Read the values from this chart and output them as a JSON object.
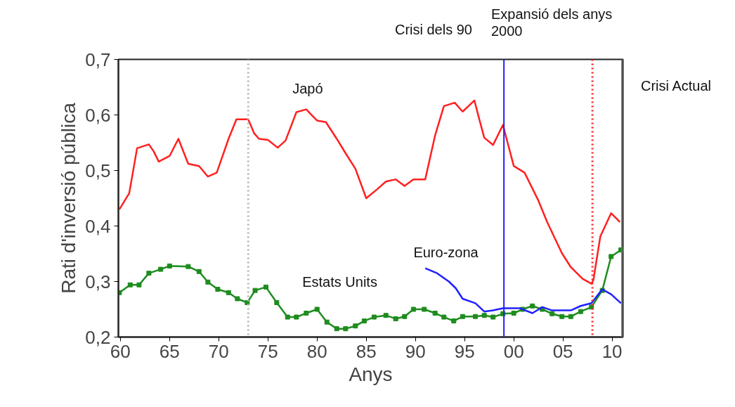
{
  "chart_data": {
    "type": "line",
    "xlabel": "Anys",
    "ylabel": "Rati d'inversió pública",
    "xlim": [
      1959.8,
      2011.1
    ],
    "ylim": [
      0.2,
      0.7
    ],
    "xticks": [
      {
        "value": 1960,
        "label": "60"
      },
      {
        "value": 1965,
        "label": "65"
      },
      {
        "value": 1970,
        "label": "70"
      },
      {
        "value": 1975,
        "label": "75"
      },
      {
        "value": 1980,
        "label": "80"
      },
      {
        "value": 1985,
        "label": "85"
      },
      {
        "value": 1990,
        "label": "90"
      },
      {
        "value": 1995,
        "label": "95"
      },
      {
        "value": 2000,
        "label": "00"
      },
      {
        "value": 2005,
        "label": "05"
      },
      {
        "value": 2010,
        "label": "10"
      }
    ],
    "yticks": [
      {
        "value": 0.2,
        "label": "0,2"
      },
      {
        "value": 0.3,
        "label": "0,3"
      },
      {
        "value": 0.4,
        "label": "0,4"
      },
      {
        "value": 0.5,
        "label": "0,5"
      },
      {
        "value": 0.6,
        "label": "0,6"
      },
      {
        "value": 0.7,
        "label": "0,7"
      }
    ],
    "grid": false,
    "legend": false,
    "line_style": "solid",
    "series": [
      {
        "name": "Japó",
        "color": "#ff2020",
        "marker": "none",
        "x": [
          1959.9,
          1960.9,
          1961.7,
          1962.9,
          1963.4,
          1963.9,
          1965.0,
          1965.9,
          1966.9,
          1968.0,
          1968.9,
          1969.8,
          1971.0,
          1971.8,
          1973.0,
          1973.6,
          1974.1,
          1975.0,
          1976.0,
          1976.8,
          1977.9,
          1978.9,
          1979.6,
          1980.0,
          1980.9,
          1982.0,
          1982.9,
          1983.9,
          1985.0,
          1986.1,
          1987.0,
          1988.0,
          1988.9,
          1989.8,
          1991.0,
          1992.0,
          1992.9,
          1994.0,
          1994.8,
          1995.4,
          1996.0,
          1996.5,
          1997.0,
          1997.9,
          1998.9,
          2000.0,
          2001.1,
          2002.5,
          2003.4,
          2004.9,
          2005.8,
          2007.0,
          2007.9,
          2008.1,
          2008.8,
          2009.9,
          2010.8
        ],
        "values": [
          0.43,
          0.459,
          0.54,
          0.547,
          0.534,
          0.516,
          0.526,
          0.557,
          0.512,
          0.508,
          0.489,
          0.496,
          0.557,
          0.592,
          0.592,
          0.567,
          0.557,
          0.555,
          0.541,
          0.554,
          0.605,
          0.61,
          0.597,
          0.59,
          0.587,
          0.557,
          0.531,
          0.503,
          0.45,
          0.466,
          0.48,
          0.484,
          0.472,
          0.484,
          0.484,
          0.563,
          0.616,
          0.622,
          0.606,
          0.616,
          0.626,
          0.592,
          0.559,
          0.546,
          0.582,
          0.508,
          0.496,
          0.446,
          0.407,
          0.351,
          0.326,
          0.305,
          0.296,
          0.303,
          0.381,
          0.423,
          0.407
        ]
      },
      {
        "name": "Estats Units",
        "color": "#1e8c1e",
        "marker": "square",
        "x": [
          1959.9,
          1961.0,
          1961.9,
          1962.9,
          1964.1,
          1965.0,
          1966.9,
          1968.0,
          1968.9,
          1969.9,
          1971.0,
          1971.9,
          1972.9,
          1973.7,
          1974.8,
          1975.9,
          1977.0,
          1977.9,
          1978.9,
          1980.0,
          1981.0,
          1982.0,
          1982.9,
          1983.9,
          1984.8,
          1985.8,
          1987.0,
          1988.0,
          1988.9,
          1989.8,
          1990.9,
          1992.0,
          1992.9,
          1993.9,
          1994.8,
          1996.1,
          1997.0,
          1997.9,
          1998.9,
          2000.0,
          2000.9,
          2001.9,
          2002.9,
          2003.9,
          2004.9,
          2005.8,
          2006.8,
          2007.9,
          2009.0,
          2009.9,
          2010.9
        ],
        "values": [
          0.28,
          0.294,
          0.294,
          0.315,
          0.322,
          0.328,
          0.327,
          0.318,
          0.299,
          0.286,
          0.28,
          0.269,
          0.262,
          0.284,
          0.29,
          0.262,
          0.236,
          0.236,
          0.243,
          0.25,
          0.227,
          0.215,
          0.215,
          0.22,
          0.229,
          0.236,
          0.239,
          0.233,
          0.237,
          0.25,
          0.25,
          0.243,
          0.236,
          0.229,
          0.237,
          0.237,
          0.239,
          0.236,
          0.242,
          0.243,
          0.25,
          0.256,
          0.25,
          0.242,
          0.237,
          0.237,
          0.246,
          0.254,
          0.284,
          0.345,
          0.357
        ]
      },
      {
        "name": "Euro-zona",
        "color": "#2020ff",
        "marker": "none",
        "x": [
          1991.0,
          1992.2,
          1993.4,
          1994.1,
          1994.8,
          1996.1,
          1997.0,
          1997.9,
          1998.9,
          2000.6,
          2001.9,
          2002.9,
          2003.9,
          2005.8,
          2006.8,
          2007.9,
          2009.0,
          2009.9,
          2010.9
        ],
        "values": [
          0.324,
          0.315,
          0.3,
          0.288,
          0.269,
          0.261,
          0.246,
          0.248,
          0.252,
          0.252,
          0.243,
          0.254,
          0.248,
          0.248,
          0.256,
          0.261,
          0.286,
          0.277,
          0.261
        ]
      }
    ],
    "ref_lines": [
      {
        "axis": "x",
        "value": 1973,
        "color": "#b4b4b4",
        "line_style": "dotted"
      },
      {
        "axis": "x",
        "value": 1999,
        "color": "#2020ff",
        "line_style": "solid",
        "label": "Expansió dels anys\n2000"
      },
      {
        "axis": "x",
        "value": 2008,
        "color": "#ff2020",
        "line_style": "dotted"
      },
      {
        "axis": "x",
        "value": 2011,
        "color": "#707070",
        "line_style": "solid",
        "label": "Crisi Actual"
      }
    ],
    "annotations": [
      "Crisi dels 90"
    ]
  }
}
